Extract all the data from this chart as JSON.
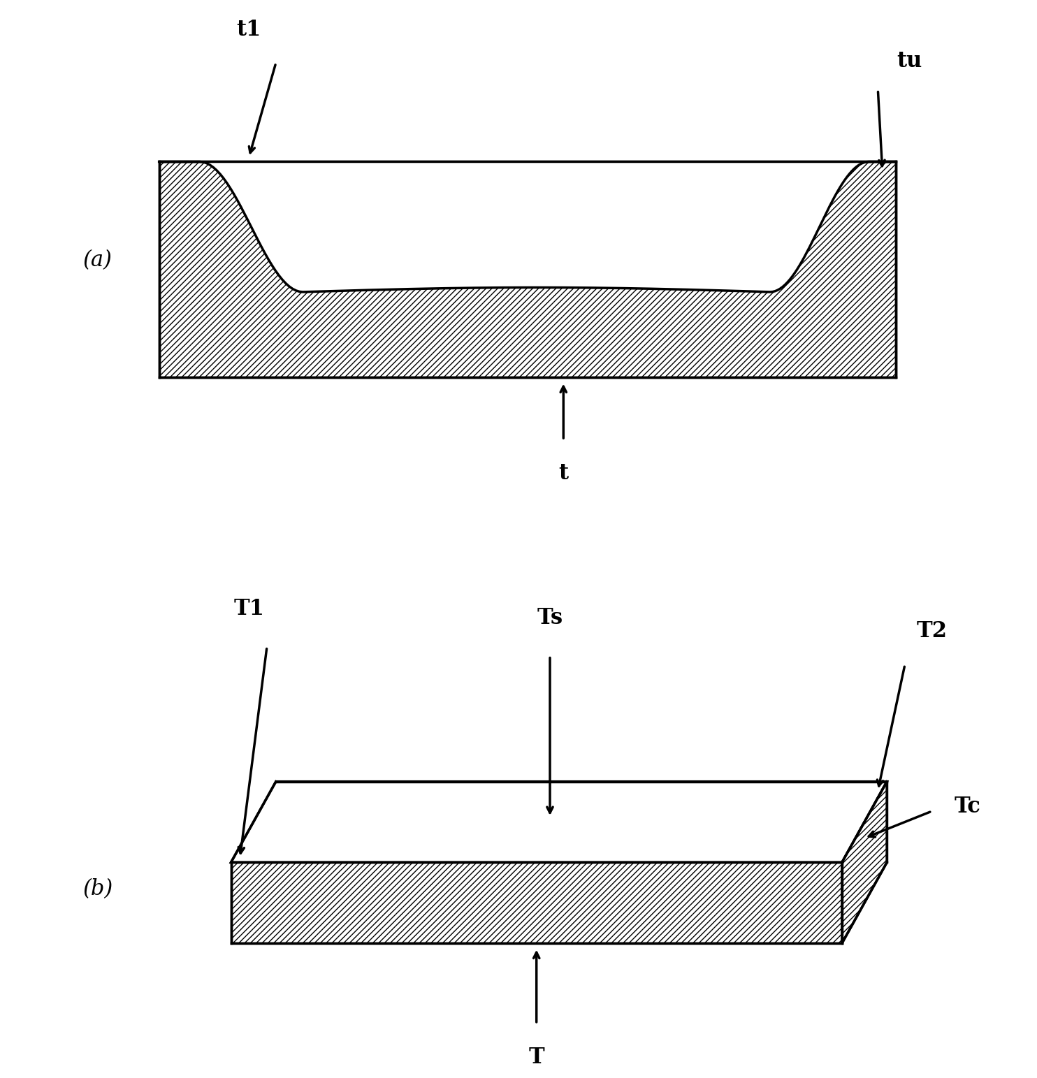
{
  "bg_color": "#ffffff",
  "line_color": "#000000",
  "hatch_pattern": "////",
  "label_a": "(a)",
  "label_b": "(b)",
  "fig_width": 14.84,
  "fig_height": 15.43,
  "label_t1": "t1",
  "label_tu": "tu",
  "label_t": "t",
  "label_T1": "T1",
  "label_Ts": "Ts",
  "label_T2": "T2",
  "label_Tc": "Tc",
  "label_T": "T",
  "font_size": 22,
  "line_width": 2.5
}
